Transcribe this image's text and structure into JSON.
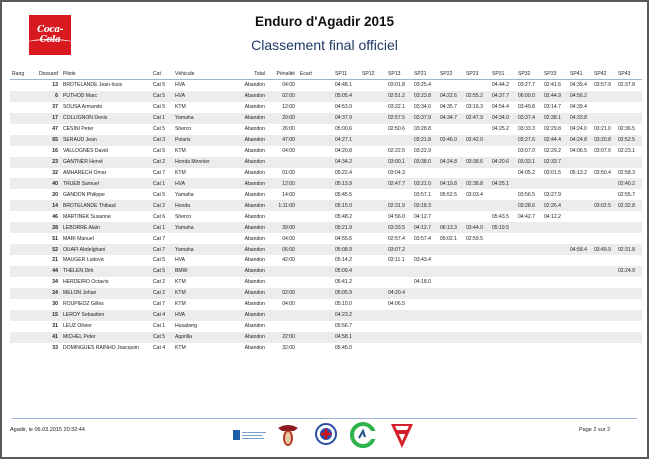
{
  "header": {
    "logo_text": "Coca-Cola",
    "title": "Enduro d'Agadir 2015",
    "subtitle": "Classement final officiel"
  },
  "colors": {
    "logo_red": "#d8191f",
    "subtitle": "#1f3864",
    "rule": "#9db3d6"
  },
  "table": {
    "columns": [
      "Rang",
      "Dossard",
      "Pilote",
      "Cat",
      "Véhicule",
      "Total",
      "Pénalité",
      "Ecart",
      "SP11",
      "SP12",
      "SP13",
      "SP21",
      "SP22",
      "SP23",
      "SP31",
      "SP32",
      "SP33",
      "SP41",
      "SP42",
      "SP43"
    ],
    "rows": [
      [
        "",
        "13",
        "BROTELANDE  Jean-louis",
        "Cat 5",
        "HVA",
        "Abandon",
        "04:00",
        "",
        "04:48.1",
        "",
        "03:01.8",
        "03:25.4",
        "",
        "",
        "04:44.2",
        "03:27.7",
        "02:41.6",
        "04:39.4",
        "03:57.9",
        "02:37.8"
      ],
      [
        "",
        "6",
        "PUTHOD Marc",
        "Cat 5",
        "HVA",
        "Abandon",
        "02:00",
        "",
        "05:05.4",
        "",
        "02:51.2",
        "03:23.8",
        "04:22.6",
        "02:55.2",
        "04:37.7",
        "06:00.0",
        "02:44.9",
        "04:56.2",
        "",
        ""
      ],
      [
        "",
        "37",
        "SOUSA Armando",
        "Cat 5",
        "KTM",
        "Abandon",
        "12:00",
        "",
        "04:53.9",
        "",
        "03:22.1",
        "03:34.0",
        "04:35.7",
        "03:16.3",
        "04:54.4",
        "03:49.8",
        "03:14.7",
        "04:39.4",
        "",
        ""
      ],
      [
        "",
        "17",
        "COLLIGNON Denis",
        "Cat 1",
        "Yamaha",
        "Abandon",
        "20:00",
        "",
        "04:37.9",
        "",
        "02:57.5",
        "03:37.9",
        "04:34.7",
        "02:47.9",
        "04:34.0",
        "03:37.4",
        "02:38.1",
        "04:33.8",
        "",
        ""
      ],
      [
        "",
        "47",
        "CESINI Peter",
        "Cat 5",
        "Sherco",
        "Abandon",
        "26:00",
        "",
        "05:00.6",
        "",
        "02:50.6",
        "03:28.8",
        "",
        "",
        "04:25.2",
        "03:33.3",
        "02:29.8",
        "04:24.0",
        "03:21.0",
        "02:36.5"
      ],
      [
        "",
        "65",
        "SERAUD Jean",
        "Cat 3",
        "Polaris",
        "Abandon",
        "47:00",
        "",
        "04:27.1",
        "",
        "",
        "03:21.8",
        "03:46.0",
        "02:42.0",
        "",
        "03:27.6",
        "02:44.4",
        "04:24.8",
        "03:20.8",
        "02:52.5"
      ],
      [
        "",
        "16",
        "VALLOGNES David",
        "Cat 5",
        "KTM",
        "Abandon",
        "04:00",
        "",
        "04:20.8",
        "",
        "02:22.5",
        "03:22.9",
        "",
        "",
        "",
        "03:07.0",
        "02:29.2",
        "04:06.5",
        "03:07.6",
        "02:23.1"
      ],
      [
        "",
        "23",
        "GANTNER Hervé",
        "Cat 2",
        "Honda Monnier",
        "Abandon",
        "",
        "",
        "04:34.2",
        "",
        "03:00.1",
        "03:38.0",
        "04:24.8",
        "03:38.6",
        "04:20.6",
        "03:33.1",
        "02:33.7",
        "",
        "",
        ""
      ],
      [
        "",
        "32",
        "AMHARECH Omar",
        "Cat 7",
        "KTM",
        "Abandon",
        "01:00",
        "",
        "05:22.4",
        "",
        "03:04.3",
        "",
        "",
        "",
        "",
        "04:05.2",
        "03:01.5",
        "05:13.2",
        "03:50.4",
        "02:58.3"
      ],
      [
        "",
        "40",
        "TRUEB Samuel",
        "Cat 1",
        "HVA",
        "Abandon",
        "12:00",
        "",
        "05:13.9",
        "",
        "02:47.7",
        "03:21.0",
        "04:19.8",
        "02:38.8",
        "04:25.1",
        "",
        "",
        "",
        "",
        "02:40.2"
      ],
      [
        "",
        "20",
        "GANDON Philippe",
        "Cat 5",
        "Yamaha",
        "Abandon",
        "14:00",
        "",
        "05:45.5",
        "",
        "",
        "03:57.1",
        "05:52.5",
        "03:03.4",
        "",
        "03:56.5",
        "03:27.9",
        "",
        "",
        "02:55.7"
      ],
      [
        "",
        "14",
        "BROTELANDE Thibaut",
        "Cat 2",
        "Honda",
        "Abandon",
        "1:11:00",
        "",
        "05:15.0",
        "",
        "02:31.9",
        "03:18.3",
        "",
        "",
        "",
        "03:28.6",
        "02:26.4",
        "",
        "03:02.5",
        "02:32.8"
      ],
      [
        "",
        "46",
        "MARTINEK Susanne",
        "Cat 6",
        "Sherco",
        "Abandon",
        "",
        "",
        "05:48.2",
        "",
        "04:56.0",
        "04:12.7",
        "",
        "",
        "05:43.5",
        "04:42.7",
        "04:12.2",
        "",
        "",
        ""
      ],
      [
        "",
        "28",
        "LEBORRE Alain",
        "Cat 1",
        "Yamaha",
        "Abandon",
        "39:00",
        "",
        "05:21.9",
        "",
        "03:33.5",
        "04:12.7",
        "06:13.3",
        "03:44.0",
        "05:19.5",
        "",
        "",
        "",
        "",
        ""
      ],
      [
        "",
        "51",
        "MARI Manuel",
        "Cat 7",
        "",
        "Abandon",
        "04:00",
        "",
        "04:55.6",
        "",
        "02:57.4",
        "03:57.4",
        "05:02.1",
        "02:59.5",
        "",
        "",
        "",
        "",
        "",
        ""
      ],
      [
        "",
        "52",
        "OUAFI Abdelghani",
        "Cat 7",
        "Yamaha",
        "Abandon",
        "06:00",
        "",
        "05:08.9",
        "",
        "03:07.2",
        "",
        "",
        "",
        "",
        "",
        "",
        "04:58.4",
        "03:49.9",
        "02:31.8"
      ],
      [
        "",
        "21",
        "MAUGER Ludovic",
        "Cat 5",
        "HVA",
        "Abandon",
        "42:00",
        "",
        "05:14.2",
        "",
        "03:11.1",
        "03:43.4",
        "",
        "",
        "",
        "",
        "",
        "",
        "",
        ""
      ],
      [
        "",
        "44",
        "THELEN Dirk",
        "Cat 5",
        "BMW",
        "Abandon",
        "",
        "",
        "05:09.4",
        "",
        "",
        "",
        "",
        "",
        "",
        "",
        "",
        "",
        "",
        "02:24.9"
      ],
      [
        "",
        "34",
        "HERDEIRO Octavio",
        "Cat 2",
        "KTM",
        "Abandon",
        "",
        "",
        "05:41.2",
        "",
        "",
        "04:18.0",
        "",
        "",
        "",
        "",
        "",
        "",
        "",
        ""
      ],
      [
        "",
        "24",
        "MELON Johan",
        "Cat 2",
        "KTM",
        "Abandon",
        "02:00",
        "",
        "05:05.9",
        "",
        "04:20.4",
        "",
        "",
        "",
        "",
        "",
        "",
        "",
        "",
        ""
      ],
      [
        "",
        "30",
        "ROUPIEOZ Gilles",
        "Cat 7",
        "KTM",
        "Abandon",
        "04:00",
        "",
        "05:10.0",
        "",
        "04:06.5",
        "",
        "",
        "",
        "",
        "",
        "",
        "",
        "",
        ""
      ],
      [
        "",
        "15",
        "LEROY Sebastien",
        "Cat 4",
        "HVA",
        "Abandon",
        "",
        "",
        "04:23.2",
        "",
        "",
        "",
        "",
        "",
        "",
        "",
        "",
        "",
        "",
        ""
      ],
      [
        "",
        "31",
        "LEUZ Olivier",
        "Cat 1",
        "Husaberg",
        "Abandon",
        "",
        "",
        "05:56.7",
        "",
        "",
        "",
        "",
        "",
        "",
        "",
        "",
        "",
        "",
        ""
      ],
      [
        "",
        "41",
        "MICHEL Peter",
        "Cat 5",
        "Apprilla",
        "Abandon",
        "22:00",
        "",
        "04:58.1",
        "",
        "",
        "",
        "",
        "",
        "",
        "",
        "",
        "",
        "",
        ""
      ],
      [
        "",
        "33",
        "DOMINGUES RAINHO Joacquim",
        "Cat 4",
        "KTM",
        "Abandon",
        "32:00",
        "",
        "05:45.0",
        "",
        "",
        "",
        "",
        "",
        "",
        "",
        "",
        "",
        "",
        ""
      ]
    ]
  },
  "footer": {
    "place_date": "Agadir, le 06.03.2015 20:32:44",
    "page": "Page 2 sur 2"
  }
}
